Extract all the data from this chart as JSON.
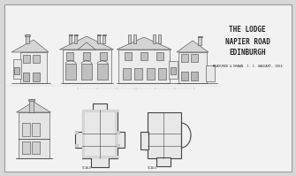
{
  "background_color": "#d8d8d8",
  "paper_color": "#f2f2f2",
  "border_color": "#999999",
  "title_lines": [
    "THE LODGE",
    "NAPIER ROAD",
    "EDINBURGH"
  ],
  "subtitle": "MEASURED & DRAWN  J. C. HAGGART, 1964",
  "title_color": "#222222",
  "drawing_color": "#666666",
  "drawing_color_dark": "#444444",
  "lw": 0.4,
  "title_fontsize": 5.5,
  "subtitle_fontsize": 2.5,
  "figw": 3.35,
  "figh": 1.99,
  "dpi": 100
}
